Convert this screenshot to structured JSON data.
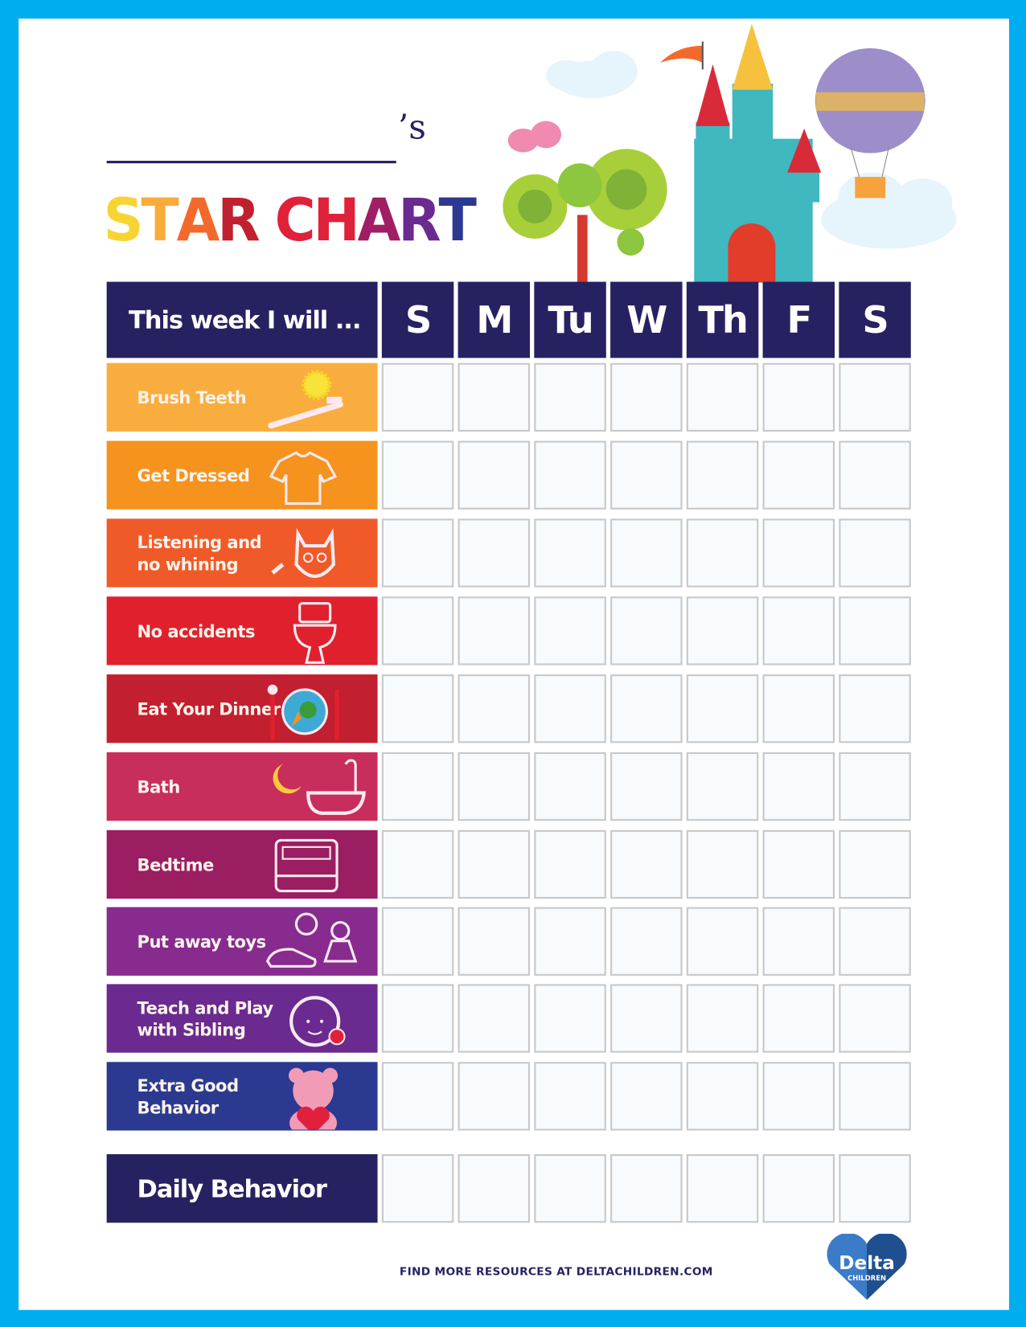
{
  "title": {
    "possessive": "’s",
    "text": "STAR CHART",
    "letter_colors": [
      "#f7d433",
      "#f9ac3c",
      "#f26a2b",
      "#c1202f",
      "#e0213a",
      "#e0213a",
      "#a01e63",
      "#6a2a90",
      "#2b3990",
      "#262262"
    ]
  },
  "table": {
    "header_label": "This week I will ...",
    "days": [
      "S",
      "M",
      "Tu",
      "W",
      "Th",
      "F",
      "S"
    ],
    "tasks": [
      {
        "label": "Brush Teeth",
        "icon": "sun-toothbrush-icon",
        "color": "#f9ad3f"
      },
      {
        "label": "Get Dressed",
        "icon": "shirt-icon",
        "color": "#f6921e"
      },
      {
        "label": "Listening and no whining",
        "icon": "cat-icon",
        "color": "#f05a28"
      },
      {
        "label": "No accidents",
        "icon": "toilet-icon",
        "color": "#e1202e"
      },
      {
        "label": "Eat Your Dinner",
        "icon": "dinner-plate-icon",
        "color": "#c21f30"
      },
      {
        "label": "Bath",
        "icon": "moon-bathtub-icon",
        "color": "#c72e5c"
      },
      {
        "label": "Bedtime",
        "icon": "bed-icon",
        "color": "#9b1d62"
      },
      {
        "label": "Put away toys",
        "icon": "toys-icon",
        "color": "#872b8f"
      },
      {
        "label": "Teach and Play with Sibling",
        "icon": "baby-icon",
        "color": "#6a2a8f"
      },
      {
        "label": "Extra Good Behavior",
        "icon": "teddy-bear-icon",
        "color": "#2b3990"
      }
    ],
    "daily_label": "Daily Behavior"
  },
  "footer": {
    "text": "FIND MORE RESOURCES AT DELTACHILDREN.COM",
    "logo_text": "Delta",
    "logo_subtext": "CHILDREN"
  },
  "colors": {
    "border": "#00aeef",
    "navy": "#262262",
    "cell_border": "#c8c8c8"
  }
}
